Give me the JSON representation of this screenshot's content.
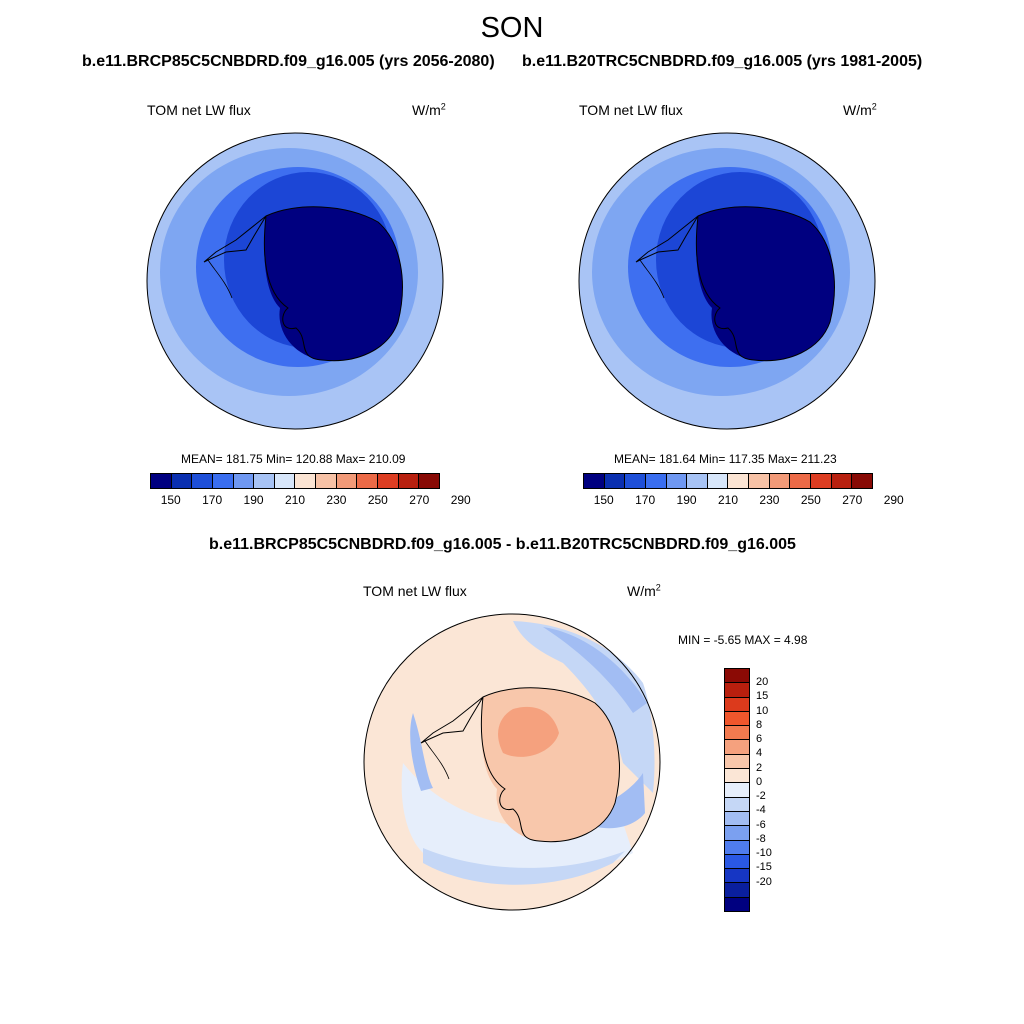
{
  "season": "SON",
  "case_future": "b.e11.BRCP85C5CNBDRD.f09_g16.005 (yrs 2056-2080)",
  "case_hist": "b.e11.B20TRC5CNBDRD.f09_g16.005 (yrs 1981-2005)",
  "diff_title": "b.e11.BRCP85C5CNBDRD.f09_g16.005 - b.e11.B20TRC5CNBDRD.f09_g16.005",
  "variable": "TOM net LW flux",
  "units_base": "W/m",
  "units_exp": "2",
  "panel_left": {
    "stats": "MEAN= 181.75  Min= 120.88  Max= 210.09"
  },
  "panel_right": {
    "stats": "MEAN= 181.64  Min= 117.35  Max= 211.23"
  },
  "panel_diff": {
    "stats": "MIN =  -5.65 MAX =   4.98"
  },
  "colorbar_main": {
    "colors": [
      "#000080",
      "#0a2fb0",
      "#1e4fd8",
      "#3a6ef0",
      "#6f98f2",
      "#a7c3f5",
      "#d7e6fa",
      "#fbe4d3",
      "#f7c2a6",
      "#f29a78",
      "#ec6a47",
      "#dd3d22",
      "#b8200f",
      "#880a05"
    ],
    "labels": [
      "150",
      "170",
      "190",
      "210",
      "230",
      "250",
      "270",
      "290"
    ]
  },
  "colorbar_diff": {
    "colors": [
      "#8b0a05",
      "#b81f0e",
      "#dc3a1c",
      "#f0562c",
      "#f37a4f",
      "#f5a17e",
      "#f8c7ab",
      "#fbe6d6",
      "#e6eefb",
      "#c5d7f6",
      "#a2bdf3",
      "#7ba0f0",
      "#4f7cee",
      "#2a58e4",
      "#1636c4",
      "#0a1f9e",
      "#000080"
    ],
    "labels": [
      "20",
      "15",
      "10",
      "8",
      "6",
      "4",
      "2",
      "0",
      "-2",
      "-4",
      "-6",
      "-8",
      "-10",
      "-15",
      "-20"
    ]
  }
}
